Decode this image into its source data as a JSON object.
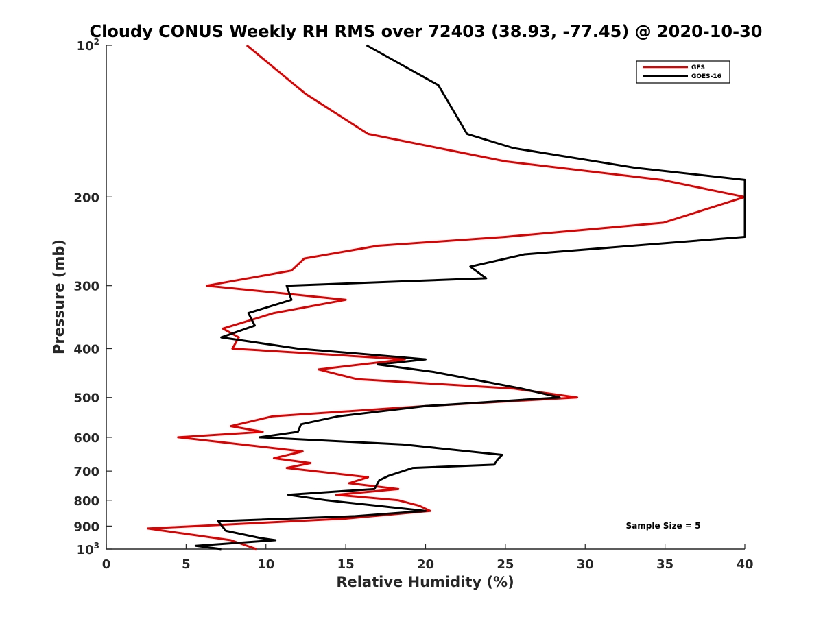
{
  "chart_data": {
    "type": "line",
    "title": "Cloudy CONUS Weekly RH RMS over 72403 (38.93, -77.45) @ 2020-10-30",
    "xlabel": "Relative Humidity (%)",
    "ylabel": "Pressure (mb)",
    "xlim": [
      0,
      40
    ],
    "ylim": [
      100,
      1000
    ],
    "y_scale": "log",
    "y_reversed": true,
    "grid": false,
    "legend_placement": "top-right",
    "x_ticks": [
      "0",
      "5",
      "10",
      "15",
      "20",
      "25",
      "30",
      "35",
      "40"
    ],
    "y_ticks": [
      {
        "value": 100,
        "base": "10",
        "exp": "2"
      },
      {
        "value": 200,
        "label": "200"
      },
      {
        "value": 300,
        "label": "300"
      },
      {
        "value": 400,
        "label": "400"
      },
      {
        "value": 500,
        "label": "500"
      },
      {
        "value": 600,
        "label": "600"
      },
      {
        "value": 700,
        "label": "700"
      },
      {
        "value": 800,
        "label": "800"
      },
      {
        "value": 900,
        "label": "900"
      },
      {
        "value": 1000,
        "base": "10",
        "exp": "3"
      }
    ],
    "annotation": "Sample Size = 5",
    "series": [
      {
        "name": "GFS",
        "color": "#e00000",
        "points": [
          [
            8.8,
            100
          ],
          [
            12.5,
            125
          ],
          [
            16.4,
            150
          ],
          [
            25.0,
            170
          ],
          [
            34.8,
            185
          ],
          [
            40.0,
            200
          ],
          [
            34.9,
            225
          ],
          [
            25.0,
            240
          ],
          [
            17.0,
            250
          ],
          [
            12.4,
            265
          ],
          [
            11.6,
            280
          ],
          [
            6.3,
            300
          ],
          [
            15.0,
            320
          ],
          [
            10.5,
            340
          ],
          [
            7.3,
            365
          ],
          [
            8.3,
            380
          ],
          [
            7.9,
            400
          ],
          [
            18.7,
            420
          ],
          [
            13.3,
            440
          ],
          [
            15.7,
            460
          ],
          [
            25.5,
            480
          ],
          [
            29.5,
            500
          ],
          [
            20.0,
            520
          ],
          [
            10.4,
            545
          ],
          [
            7.8,
            570
          ],
          [
            9.8,
            585
          ],
          [
            4.5,
            600
          ],
          [
            12.3,
            640
          ],
          [
            10.5,
            660
          ],
          [
            12.8,
            675
          ],
          [
            11.3,
            690
          ],
          [
            16.4,
            720
          ],
          [
            15.2,
            740
          ],
          [
            18.3,
            760
          ],
          [
            14.4,
            780
          ],
          [
            18.3,
            800
          ],
          [
            19.6,
            820
          ],
          [
            20.3,
            840
          ],
          [
            15.0,
            870
          ],
          [
            2.6,
            910
          ],
          [
            7.8,
            960
          ],
          [
            9.4,
            1000
          ]
        ]
      },
      {
        "name": "GOES-16",
        "color": "#000000",
        "points": [
          [
            16.3,
            100
          ],
          [
            20.8,
            120
          ],
          [
            22.6,
            150
          ],
          [
            25.5,
            160
          ],
          [
            33.1,
            175
          ],
          [
            40.0,
            185
          ],
          [
            40.0,
            240
          ],
          [
            26.2,
            260
          ],
          [
            22.8,
            275
          ],
          [
            23.8,
            290
          ],
          [
            11.3,
            300
          ],
          [
            11.6,
            320
          ],
          [
            8.9,
            340
          ],
          [
            9.3,
            360
          ],
          [
            7.2,
            380
          ],
          [
            12.0,
            400
          ],
          [
            20.0,
            420
          ],
          [
            17.0,
            430
          ],
          [
            20.5,
            445
          ],
          [
            26.0,
            480
          ],
          [
            28.4,
            500
          ],
          [
            20.0,
            520
          ],
          [
            14.5,
            545
          ],
          [
            12.2,
            565
          ],
          [
            12.0,
            585
          ],
          [
            9.6,
            600
          ],
          [
            18.6,
            620
          ],
          [
            24.8,
            650
          ],
          [
            24.5,
            665
          ],
          [
            24.3,
            680
          ],
          [
            19.2,
            690
          ],
          [
            17.7,
            715
          ],
          [
            17.1,
            730
          ],
          [
            16.8,
            760
          ],
          [
            14.0,
            770
          ],
          [
            11.4,
            780
          ],
          [
            13.8,
            800
          ],
          [
            20.0,
            840
          ],
          [
            15.6,
            860
          ],
          [
            7.0,
            880
          ],
          [
            7.5,
            920
          ],
          [
            9.6,
            950
          ],
          [
            10.6,
            960
          ],
          [
            5.6,
            985
          ],
          [
            7.2,
            1000
          ]
        ]
      }
    ]
  }
}
